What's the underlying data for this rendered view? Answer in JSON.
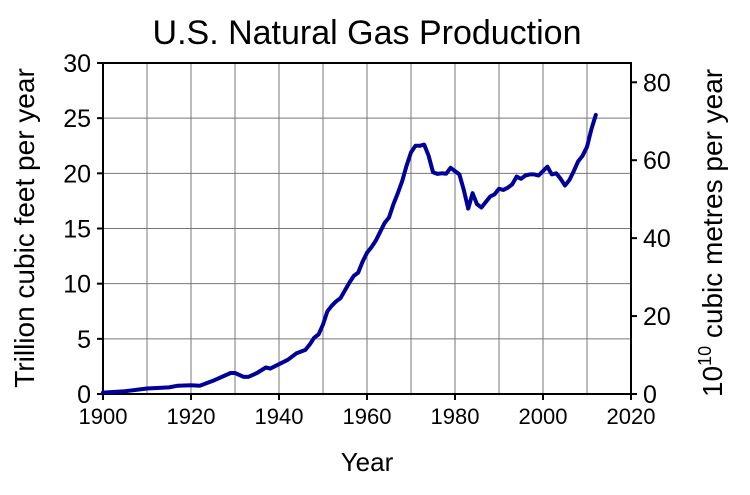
{
  "chart_data": {
    "type": "line",
    "title": "U.S. Natural Gas Production",
    "xlabel": "Year",
    "ylabel": "Trillion cubic feet per year",
    "y2label_base": "10",
    "y2label_exp": "10",
    "y2label_rest": " cubic metres per year",
    "xlim": [
      1900,
      2020
    ],
    "ylim": [
      0,
      30
    ],
    "y2_factor": 2.8317,
    "xticks": [
      1900,
      1920,
      1940,
      1960,
      1980,
      2000,
      2020
    ],
    "yticks": [
      0,
      5,
      10,
      15,
      20,
      25,
      30
    ],
    "y2ticks": [
      0,
      20,
      40,
      60,
      80
    ],
    "grid": true,
    "line_color": "#000099",
    "series": [
      {
        "name": "U.S. natural gas production",
        "x": [
          1900,
          1905,
          1910,
          1915,
          1917,
          1920,
          1922,
          1925,
          1929,
          1930,
          1932,
          1933,
          1935,
          1937,
          1938,
          1940,
          1942,
          1944,
          1946,
          1947,
          1948,
          1949,
          1950,
          1951,
          1952,
          1953,
          1954,
          1955,
          1956,
          1957,
          1958,
          1959,
          1960,
          1961,
          1962,
          1963,
          1964,
          1965,
          1966,
          1967,
          1968,
          1969,
          1970,
          1971,
          1972,
          1973,
          1974,
          1975,
          1976,
          1977,
          1978,
          1979,
          1980,
          1981,
          1982,
          1983,
          1984,
          1985,
          1986,
          1987,
          1988,
          1989,
          1990,
          1991,
          1992,
          1993,
          1994,
          1995,
          1996,
          1997,
          1998,
          1999,
          2000,
          2001,
          2002,
          2003,
          2004,
          2005,
          2006,
          2007,
          2008,
          2009,
          2010,
          2011,
          2012
        ],
        "y": [
          0.13,
          0.25,
          0.5,
          0.6,
          0.75,
          0.8,
          0.75,
          1.2,
          1.9,
          1.9,
          1.55,
          1.55,
          1.9,
          2.4,
          2.3,
          2.7,
          3.1,
          3.7,
          4.0,
          4.5,
          5.1,
          5.4,
          6.3,
          7.5,
          8.0,
          8.4,
          8.7,
          9.4,
          10.1,
          10.7,
          11.0,
          12.0,
          12.8,
          13.3,
          13.9,
          14.7,
          15.5,
          16.0,
          17.2,
          18.2,
          19.3,
          20.7,
          21.9,
          22.5,
          22.5,
          22.6,
          21.6,
          20.1,
          19.95,
          20.0,
          19.97,
          20.5,
          20.2,
          19.9,
          18.5,
          16.8,
          18.2,
          17.2,
          16.9,
          17.4,
          17.9,
          18.1,
          18.6,
          18.5,
          18.7,
          19.0,
          19.7,
          19.5,
          19.8,
          19.9,
          19.9,
          19.8,
          20.2,
          20.6,
          19.9,
          20.0,
          19.5,
          18.9,
          19.4,
          20.2,
          21.1,
          21.6,
          22.4,
          24.0,
          25.3
        ]
      }
    ]
  }
}
